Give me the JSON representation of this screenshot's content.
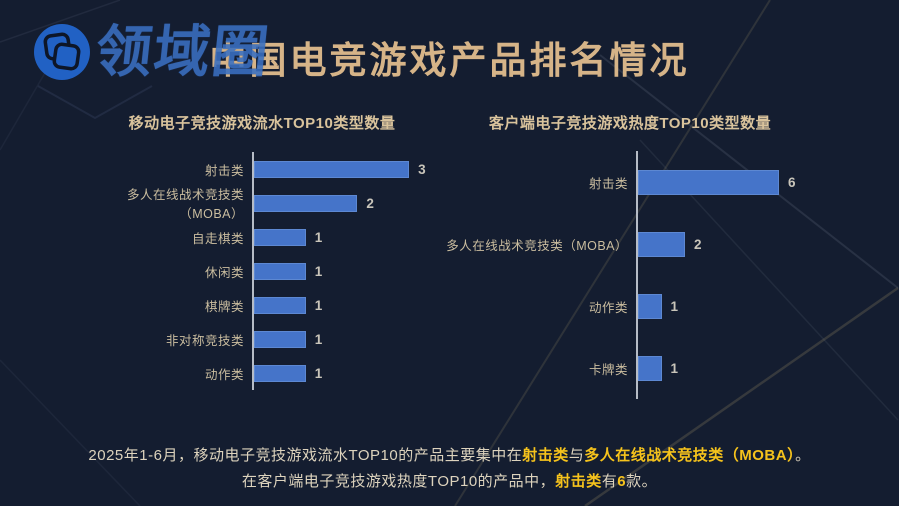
{
  "page": {
    "title": "中国电竞游戏产品排名情况",
    "title_color": "#d6b488",
    "background_color": "#141d30",
    "logo_text": "领域圈",
    "logo_color": "#2161c4",
    "bar_color": "#4574c9",
    "highlight_color": "#f6c31c"
  },
  "chart_data": [
    {
      "type": "bar",
      "orientation": "horizontal",
      "title": "移动电子竞技游戏流水TOP10类型数量",
      "categories": [
        "射击类",
        "多人在线战术竞技类（MOBA）",
        "自走棋类",
        "休闲类",
        "棋牌类",
        "非对称竞技类",
        "动作类"
      ],
      "values": [
        3,
        2,
        1,
        1,
        1,
        1,
        1
      ],
      "xlim": [
        0,
        3
      ],
      "data_labels": true,
      "legend": "none",
      "grid": false
    },
    {
      "type": "bar",
      "orientation": "horizontal",
      "title": "客户端电子竞技游戏热度TOP10类型数量",
      "categories": [
        "射击类",
        "多人在线战术竞技类（MOBA）",
        "动作类",
        "卡牌类"
      ],
      "values": [
        6,
        2,
        1,
        1
      ],
      "xlim": [
        0,
        6
      ],
      "data_labels": true,
      "legend": "none",
      "grid": false
    }
  ],
  "caption": {
    "line1": [
      {
        "text": "2025年1-6月，移动电子竞技游戏流水TOP10的产品主要集中在",
        "highlight": false
      },
      {
        "text": "射击类",
        "highlight": true
      },
      {
        "text": "与",
        "highlight": false
      },
      {
        "text": "多人在线战术竞技类（MOBA）",
        "highlight": true
      },
      {
        "text": "。",
        "highlight": false
      }
    ],
    "line2": [
      {
        "text": "在客户端电子竞技游戏热度TOP10的产品中，",
        "highlight": false
      },
      {
        "text": "射击类",
        "highlight": true
      },
      {
        "text": "有",
        "highlight": false
      },
      {
        "text": "6",
        "highlight": true
      },
      {
        "text": "款。",
        "highlight": false
      }
    ]
  }
}
